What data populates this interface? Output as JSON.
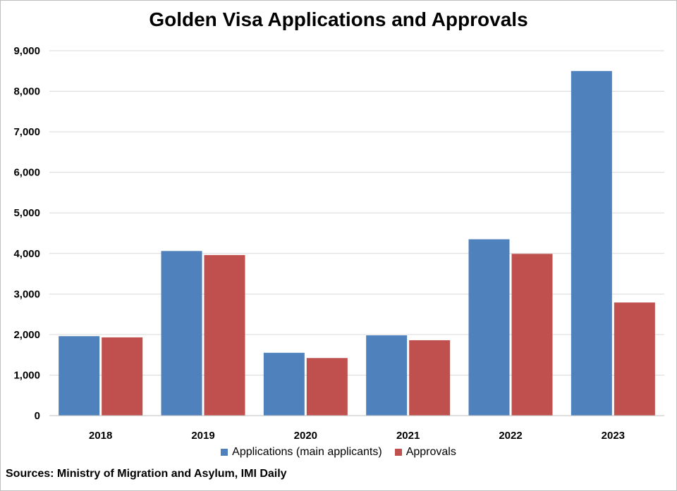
{
  "chart_data": {
    "type": "bar",
    "title": "Golden Visa Applications and Approvals",
    "categories": [
      "2018",
      "2019",
      "2020",
      "2021",
      "2022",
      "2023"
    ],
    "series": [
      {
        "name": "Applications (main applicants)",
        "color": "#4F81BD",
        "values": [
          1960,
          4060,
          1550,
          1980,
          4350,
          8500
        ]
      },
      {
        "name": "Approvals",
        "color": "#C0504D",
        "values": [
          1930,
          3960,
          1420,
          1860,
          3990,
          2790
        ]
      }
    ],
    "ylim": [
      0,
      9000
    ],
    "yticks": [
      0,
      1000,
      2000,
      3000,
      4000,
      5000,
      6000,
      7000,
      8000,
      9000
    ],
    "ytick_labels": [
      "0",
      "1,000",
      "2,000",
      "3,000",
      "4,000",
      "5,000",
      "6,000",
      "7,000",
      "8,000",
      "9,000"
    ],
    "grid": true,
    "legend_position": "bottom",
    "source": "Sources: Ministry of Migration and Asylum, IMI Daily"
  }
}
